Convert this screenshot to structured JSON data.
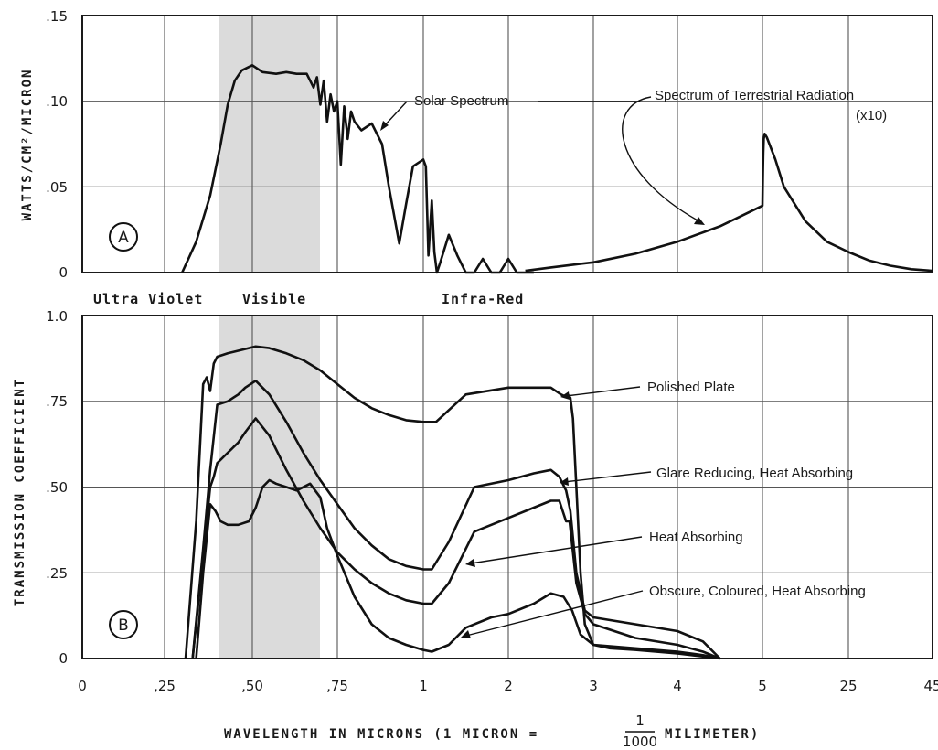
{
  "chart_data": [
    {
      "panel": "A",
      "type": "line",
      "ylabel": "WATTS/CM²/MICRON",
      "x_tick_labels": [
        "0",
        ",25",
        ",50",
        ",75",
        "1",
        "2",
        "3",
        "4",
        "5",
        "25",
        "45"
      ],
      "y_tick_labels": [
        "0",
        ".05",
        ".10",
        ".15"
      ],
      "ylim": [
        0,
        0.15
      ],
      "annotations": [
        "Solar Spectrum",
        "Spectrum of Terrestrial Radiation",
        "(x10)"
      ],
      "shaded_band": "visible",
      "series": [
        {
          "name": "Solar Spectrum",
          "x": [
            0.3,
            0.34,
            0.38,
            0.41,
            0.43,
            0.45,
            0.47,
            0.5,
            0.53,
            0.57,
            0.6,
            0.63,
            0.66,
            0.68,
            0.69,
            0.7,
            0.71,
            0.72,
            0.73,
            0.74,
            0.75,
            0.76,
            0.77,
            0.78,
            0.79,
            0.8,
            0.82,
            0.85,
            0.88,
            0.9,
            0.93,
            0.95,
            0.97,
            1.0,
            1.03,
            1.06,
            1.1,
            1.13,
            1.16,
            1.2,
            1.3,
            1.4,
            1.5,
            1.6,
            1.7,
            1.8,
            1.9,
            2.0,
            2.1,
            2.2,
            2.3
          ],
          "values": [
            0.0,
            0.018,
            0.045,
            0.075,
            0.098,
            0.112,
            0.118,
            0.121,
            0.117,
            0.116,
            0.117,
            0.116,
            0.116,
            0.108,
            0.114,
            0.098,
            0.112,
            0.088,
            0.104,
            0.094,
            0.1,
            0.063,
            0.097,
            0.078,
            0.094,
            0.088,
            0.083,
            0.087,
            0.075,
            0.05,
            0.017,
            0.04,
            0.062,
            0.066,
            0.062,
            0.01,
            0.042,
            0.012,
            0.0,
            0.006,
            0.022,
            0.01,
            0.0,
            0.0,
            0.008,
            0.0,
            0.0,
            0.008,
            0.0,
            0.0,
            0.0
          ]
        },
        {
          "name": "Spectrum of Terrestrial Radiation",
          "x": [
            2.2,
            2.5,
            3.0,
            3.5,
            4.0,
            4.5,
            5.0,
            5.03,
            5.1,
            5.2,
            5.3,
            5.5,
            6,
            8,
            10,
            15,
            20,
            25,
            30,
            35,
            40,
            45
          ],
          "values": [
            0.001,
            0.003,
            0.006,
            0.011,
            0.018,
            0.027,
            0.039,
            0.043,
            0.058,
            0.07,
            0.078,
            0.081,
            0.079,
            0.066,
            0.05,
            0.03,
            0.018,
            0.012,
            0.007,
            0.004,
            0.002,
            0.001
          ]
        }
      ]
    },
    {
      "panel": "B",
      "type": "line",
      "xlabel": "WAVELENGTH IN MICRONS (1 MICRON =",
      "xlabel_fraction": [
        "1",
        "1000"
      ],
      "xlabel_tail": "MILIMETER)",
      "ylabel": "TRANSMISSION COEFFICIENT",
      "x_tick_labels": [
        "0",
        ",25",
        ",50",
        ",75",
        "1",
        "2",
        "3",
        "4",
        "5",
        "25",
        "45"
      ],
      "y_tick_labels": [
        "0",
        ".25",
        ".50",
        ".75",
        "1.0"
      ],
      "ylim": [
        0,
        1.0
      ],
      "band_labels": [
        "Ultra Violet",
        "Visible",
        "Infra-Red"
      ],
      "series": [
        {
          "name": "Polished Plate",
          "x": [
            0.31,
            0.34,
            0.36,
            0.37,
            0.38,
            0.39,
            0.4,
            0.43,
            0.47,
            0.51,
            0.55,
            0.6,
            0.65,
            0.7,
            0.75,
            0.8,
            0.85,
            0.9,
            0.95,
            1.0,
            1.15,
            1.5,
            2.0,
            2.5,
            2.62,
            2.66,
            2.7,
            2.73,
            2.76,
            2.8,
            2.85,
            2.9,
            3.0,
            3.2,
            3.5,
            4.0,
            4.5
          ],
          "values": [
            0.0,
            0.4,
            0.8,
            0.82,
            0.78,
            0.86,
            0.88,
            0.89,
            0.9,
            0.91,
            0.905,
            0.89,
            0.87,
            0.84,
            0.8,
            0.76,
            0.73,
            0.71,
            0.695,
            0.69,
            0.69,
            0.77,
            0.79,
            0.79,
            0.77,
            0.765,
            0.77,
            0.76,
            0.7,
            0.5,
            0.25,
            0.1,
            0.04,
            0.03,
            0.025,
            0.015,
            0.0
          ]
        },
        {
          "name": "Glare Reducing, Heat Absorbing",
          "x": [
            0.33,
            0.36,
            0.38,
            0.4,
            0.43,
            0.46,
            0.48,
            0.51,
            0.55,
            0.6,
            0.65,
            0.7,
            0.75,
            0.8,
            0.85,
            0.9,
            0.95,
            1.0,
            1.1,
            1.3,
            1.6,
            2.0,
            2.3,
            2.5,
            2.6,
            2.68,
            2.73,
            2.8,
            2.9,
            3.0,
            3.5,
            4.0,
            4.3,
            4.5
          ],
          "values": [
            0.0,
            0.32,
            0.55,
            0.74,
            0.75,
            0.77,
            0.79,
            0.81,
            0.77,
            0.69,
            0.6,
            0.52,
            0.45,
            0.38,
            0.33,
            0.29,
            0.27,
            0.26,
            0.26,
            0.34,
            0.5,
            0.52,
            0.54,
            0.55,
            0.53,
            0.49,
            0.43,
            0.25,
            0.14,
            0.12,
            0.1,
            0.08,
            0.05,
            0.0
          ]
        },
        {
          "name": "Heat Absorbing",
          "x": [
            0.33,
            0.36,
            0.38,
            0.39,
            0.4,
            0.43,
            0.46,
            0.48,
            0.51,
            0.55,
            0.6,
            0.65,
            0.7,
            0.75,
            0.8,
            0.85,
            0.9,
            0.95,
            1.0,
            1.1,
            1.3,
            1.6,
            2.0,
            2.3,
            2.5,
            2.6,
            2.68,
            2.72,
            2.8,
            2.9,
            3.0,
            3.5,
            4.0,
            4.3,
            4.5
          ],
          "values": [
            0.0,
            0.3,
            0.5,
            0.53,
            0.57,
            0.6,
            0.63,
            0.66,
            0.7,
            0.65,
            0.55,
            0.46,
            0.38,
            0.31,
            0.26,
            0.22,
            0.19,
            0.17,
            0.16,
            0.16,
            0.22,
            0.37,
            0.41,
            0.44,
            0.46,
            0.46,
            0.4,
            0.4,
            0.22,
            0.13,
            0.1,
            0.06,
            0.04,
            0.02,
            0.0
          ]
        },
        {
          "name": "Obscure, Coloured, Heat Absorbing",
          "x": [
            0.34,
            0.36,
            0.38,
            0.395,
            0.41,
            0.43,
            0.46,
            0.49,
            0.51,
            0.53,
            0.55,
            0.57,
            0.6,
            0.63,
            0.67,
            0.7,
            0.72,
            0.75,
            0.8,
            0.85,
            0.9,
            0.95,
            1.0,
            1.1,
            1.3,
            1.5,
            1.8,
            2.0,
            2.3,
            2.5,
            2.65,
            2.75,
            2.85,
            3.0,
            3.5,
            4.0,
            4.3,
            4.5
          ],
          "values": [
            0.0,
            0.25,
            0.45,
            0.43,
            0.4,
            0.39,
            0.39,
            0.4,
            0.44,
            0.5,
            0.52,
            0.51,
            0.5,
            0.49,
            0.51,
            0.47,
            0.38,
            0.3,
            0.18,
            0.1,
            0.06,
            0.04,
            0.025,
            0.02,
            0.04,
            0.09,
            0.12,
            0.13,
            0.16,
            0.19,
            0.18,
            0.14,
            0.07,
            0.04,
            0.03,
            0.02,
            0.01,
            0.0
          ]
        }
      ]
    }
  ]
}
